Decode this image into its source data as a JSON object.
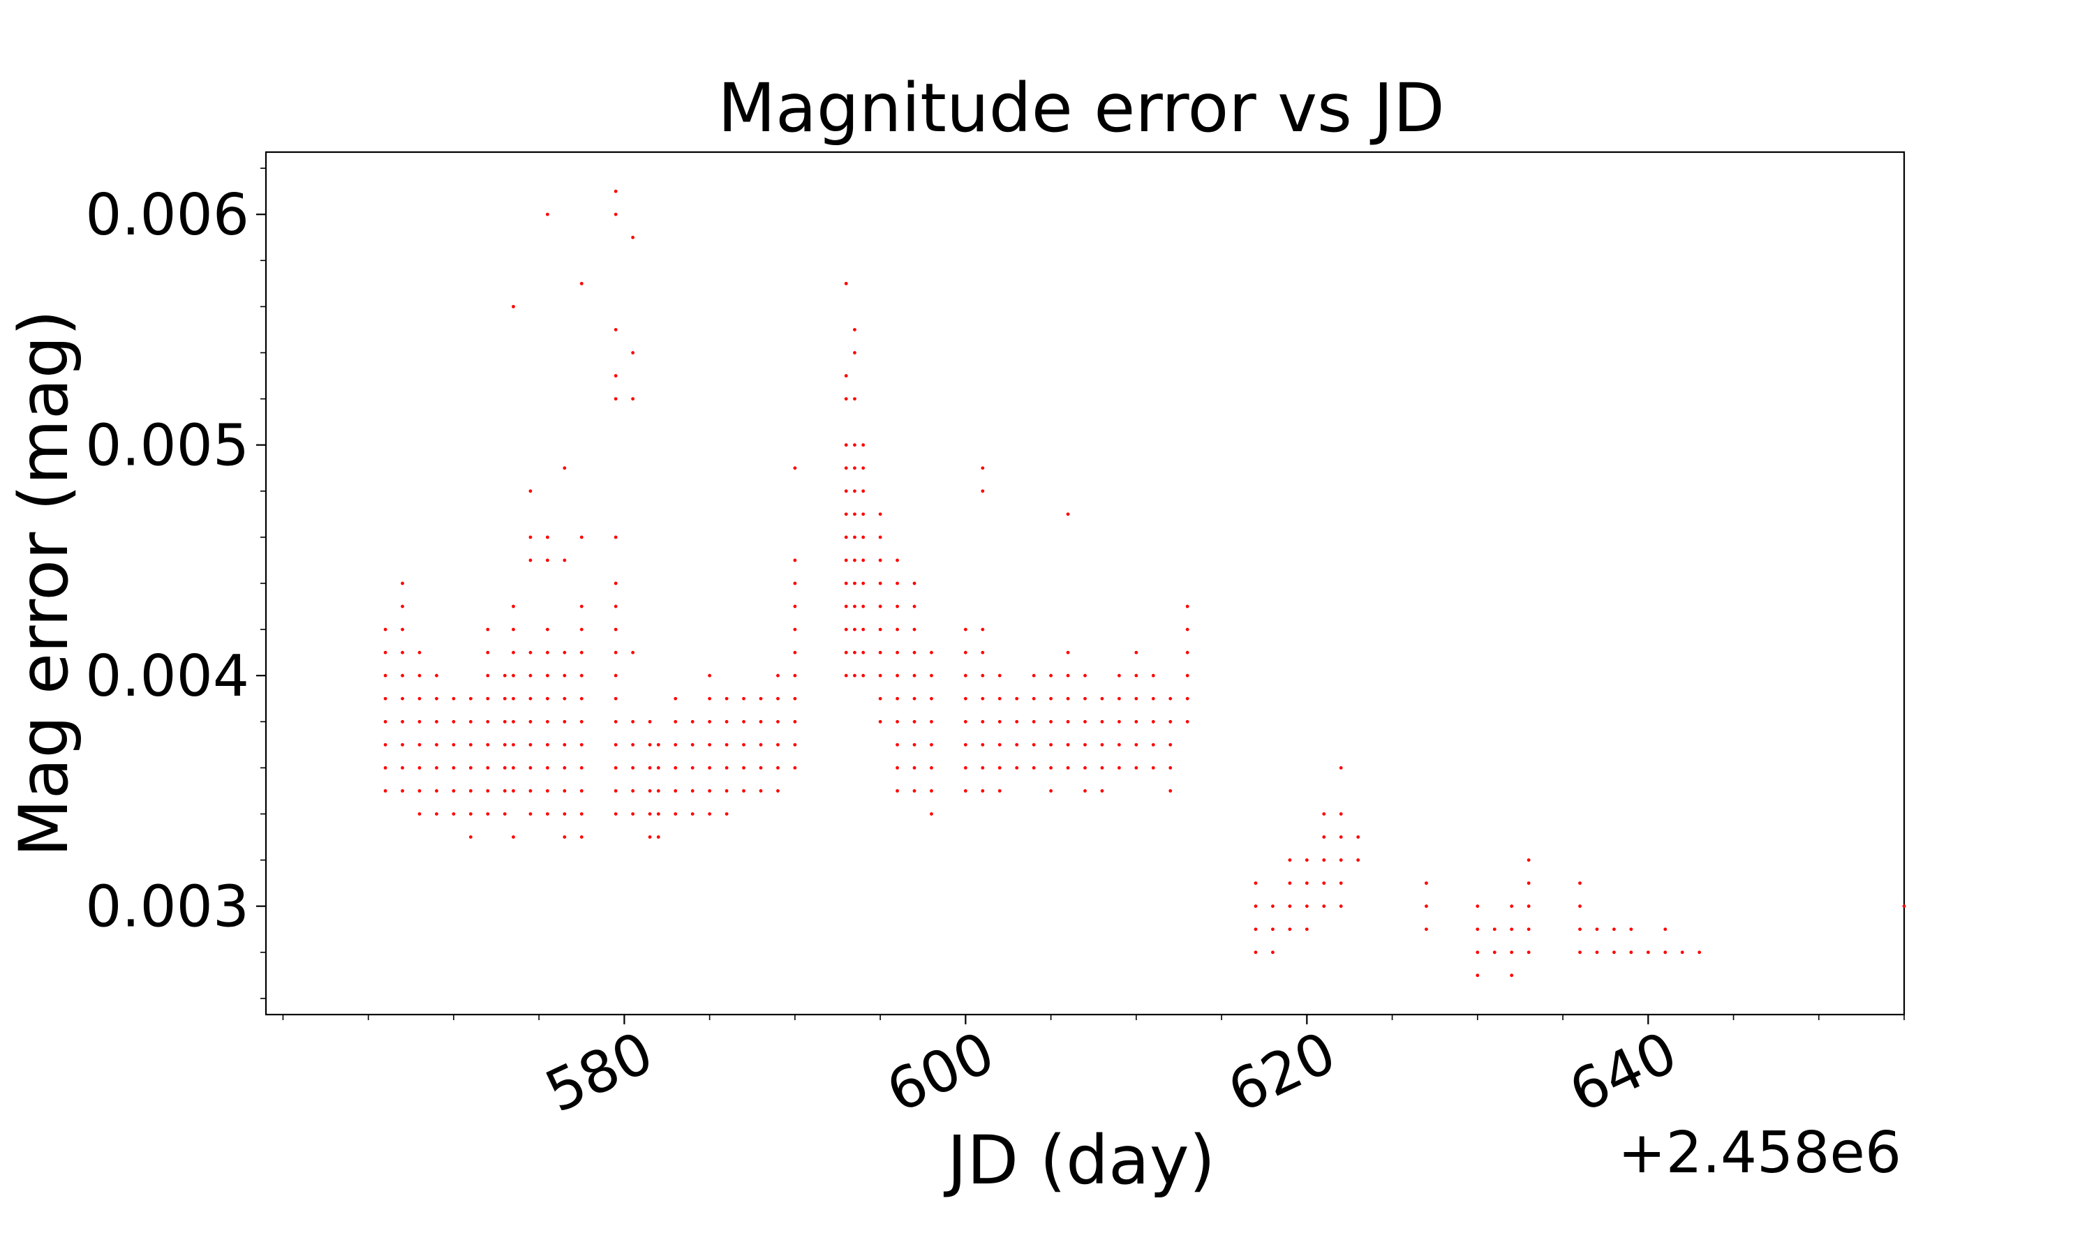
{
  "chart_data": {
    "type": "scatter",
    "title": "Magnitude error vs JD",
    "xlabel": "JD (day)",
    "ylabel": "Mag error (mag)",
    "x_offset_label": "+2.458e6",
    "x_offset": 2458000,
    "xlim": [
      2458559.0,
      2458655.0
    ],
    "ylim": [
      0.00253,
      0.00627
    ],
    "x_ticks": [
      {
        "value": 2458580,
        "label": "580"
      },
      {
        "value": 2458600,
        "label": "600"
      },
      {
        "value": 2458620,
        "label": "620"
      },
      {
        "value": 2458640,
        "label": "640"
      }
    ],
    "y_ticks": [
      {
        "value": 0.003,
        "label": "0.003"
      },
      {
        "value": 0.004,
        "label": "0.004"
      },
      {
        "value": 0.005,
        "label": "0.005"
      },
      {
        "value": 0.006,
        "label": "0.006"
      }
    ],
    "marker_color": "#ff0000",
    "grid": false,
    "legend": "none",
    "series": [
      {
        "name": "",
        "columns": [
          [
            2458566.0,
            [
              0.0035,
              0.0036,
              0.0037,
              0.0038,
              0.0039,
              0.004,
              0.0041,
              0.0042
            ]
          ],
          [
            2458567.0,
            [
              0.0035,
              0.0036,
              0.0037,
              0.0038,
              0.0039,
              0.004,
              0.0041,
              0.0042,
              0.0043,
              0.0044
            ]
          ],
          [
            2458568.0,
            [
              0.0034,
              0.0035,
              0.0036,
              0.0037,
              0.0038,
              0.0039,
              0.004,
              0.0041
            ]
          ],
          [
            2458569.0,
            [
              0.0034,
              0.0035,
              0.0036,
              0.0037,
              0.0038,
              0.0039,
              0.004
            ]
          ],
          [
            2458570.0,
            [
              0.0034,
              0.0035,
              0.0036,
              0.0037,
              0.0038,
              0.0039
            ]
          ],
          [
            2458571.0,
            [
              0.0033,
              0.0034,
              0.0035,
              0.0036,
              0.0037,
              0.0038,
              0.0039
            ]
          ],
          [
            2458572.0,
            [
              0.0034,
              0.0035,
              0.0036,
              0.0037,
              0.0038,
              0.0039,
              0.004,
              0.0041,
              0.0042
            ]
          ],
          [
            2458573.0,
            [
              0.0034,
              0.0035,
              0.0036,
              0.0037,
              0.0038,
              0.0039,
              0.004
            ]
          ],
          [
            2458573.5,
            [
              0.0033,
              0.0035,
              0.0036,
              0.0037,
              0.0038,
              0.0039,
              0.004,
              0.0041,
              0.0042,
              0.0043,
              0.0056
            ]
          ],
          [
            2458574.5,
            [
              0.0034,
              0.0035,
              0.0036,
              0.0037,
              0.0038,
              0.0039,
              0.004,
              0.0041,
              0.0045,
              0.0046,
              0.0048
            ]
          ],
          [
            2458575.5,
            [
              0.0034,
              0.0035,
              0.0036,
              0.0037,
              0.0038,
              0.0039,
              0.004,
              0.0041,
              0.0042,
              0.0045,
              0.0046,
              0.006
            ]
          ],
          [
            2458576.5,
            [
              0.0033,
              0.0034,
              0.0035,
              0.0036,
              0.0037,
              0.0038,
              0.0039,
              0.004,
              0.0041,
              0.0045,
              0.0049
            ]
          ],
          [
            2458577.5,
            [
              0.0033,
              0.0034,
              0.0035,
              0.0036,
              0.0037,
              0.0038,
              0.0039,
              0.004,
              0.0041,
              0.0042,
              0.0043,
              0.0046,
              0.0057
            ]
          ],
          [
            2458579.5,
            [
              0.0034,
              0.0035,
              0.0036,
              0.0037,
              0.0038,
              0.0039,
              0.004,
              0.0041,
              0.0042,
              0.0043,
              0.0044,
              0.0046,
              0.0052,
              0.0053,
              0.0055,
              0.006,
              0.0061
            ]
          ],
          [
            2458580.5,
            [
              0.0034,
              0.0035,
              0.0036,
              0.0037,
              0.0038,
              0.0041,
              0.0052,
              0.0054,
              0.0059
            ]
          ],
          [
            2458581.5,
            [
              0.0033,
              0.0034,
              0.0035,
              0.0036,
              0.0037,
              0.0038
            ]
          ],
          [
            2458582.0,
            [
              0.0033,
              0.0034,
              0.0035,
              0.0036,
              0.0037
            ]
          ],
          [
            2458583.0,
            [
              0.0034,
              0.0035,
              0.0036,
              0.0037,
              0.0038,
              0.0039
            ]
          ],
          [
            2458584.0,
            [
              0.0034,
              0.0035,
              0.0036,
              0.0037,
              0.0038
            ]
          ],
          [
            2458585.0,
            [
              0.0034,
              0.0035,
              0.0036,
              0.0037,
              0.0038,
              0.0039,
              0.004
            ]
          ],
          [
            2458586.0,
            [
              0.0034,
              0.0035,
              0.0036,
              0.0037,
              0.0038,
              0.0039
            ]
          ],
          [
            2458587.0,
            [
              0.0035,
              0.0036,
              0.0037,
              0.0038,
              0.0039
            ]
          ],
          [
            2458588.0,
            [
              0.0035,
              0.0036,
              0.0037,
              0.0038,
              0.0039
            ]
          ],
          [
            2458589.0,
            [
              0.0035,
              0.0036,
              0.0037,
              0.0038,
              0.0039,
              0.004
            ]
          ],
          [
            2458590.0,
            [
              0.0036,
              0.0037,
              0.0038,
              0.0039,
              0.004,
              0.0041,
              0.0042,
              0.0043,
              0.0044,
              0.0045,
              0.0049
            ]
          ],
          [
            2458593.0,
            [
              0.004,
              0.0041,
              0.0042,
              0.0043,
              0.0044,
              0.0045,
              0.0046,
              0.0047,
              0.0048,
              0.0049,
              0.005,
              0.0052,
              0.0053,
              0.0057
            ]
          ],
          [
            2458593.5,
            [
              0.004,
              0.0041,
              0.0042,
              0.0043,
              0.0044,
              0.0045,
              0.0046,
              0.0047,
              0.0048,
              0.0049,
              0.005,
              0.0052,
              0.0054,
              0.0055
            ]
          ],
          [
            2458594.0,
            [
              0.004,
              0.0041,
              0.0042,
              0.0043,
              0.0044,
              0.0045,
              0.0046,
              0.0047,
              0.0048,
              0.0049,
              0.005
            ]
          ],
          [
            2458595.0,
            [
              0.0038,
              0.0039,
              0.004,
              0.0041,
              0.0042,
              0.0043,
              0.0044,
              0.0045,
              0.0046,
              0.0047
            ]
          ],
          [
            2458596.0,
            [
              0.0035,
              0.0036,
              0.0037,
              0.0038,
              0.0039,
              0.004,
              0.0041,
              0.0042,
              0.0043,
              0.0044,
              0.0045
            ]
          ],
          [
            2458597.0,
            [
              0.0035,
              0.0036,
              0.0037,
              0.0038,
              0.0039,
              0.004,
              0.0041,
              0.0042,
              0.0043,
              0.0044
            ]
          ],
          [
            2458598.0,
            [
              0.0034,
              0.0035,
              0.0036,
              0.0037,
              0.0038,
              0.0039,
              0.004,
              0.0041
            ]
          ],
          [
            2458600.0,
            [
              0.0035,
              0.0036,
              0.0037,
              0.0038,
              0.0039,
              0.004,
              0.0041,
              0.0042
            ]
          ],
          [
            2458601.0,
            [
              0.0035,
              0.0036,
              0.0037,
              0.0038,
              0.0039,
              0.004,
              0.0041,
              0.0042,
              0.0048,
              0.0049
            ]
          ],
          [
            2458602.0,
            [
              0.0035,
              0.0036,
              0.0037,
              0.0038,
              0.0039,
              0.004
            ]
          ],
          [
            2458603.0,
            [
              0.0036,
              0.0037,
              0.0038,
              0.0039
            ]
          ],
          [
            2458604.0,
            [
              0.0036,
              0.0037,
              0.0038,
              0.0039,
              0.004
            ]
          ],
          [
            2458605.0,
            [
              0.0035,
              0.0036,
              0.0037,
              0.0038,
              0.0039,
              0.004
            ]
          ],
          [
            2458606.0,
            [
              0.0036,
              0.0037,
              0.0038,
              0.0039,
              0.004,
              0.0041,
              0.0047
            ]
          ],
          [
            2458607.0,
            [
              0.0035,
              0.0036,
              0.0037,
              0.0038,
              0.0039,
              0.004
            ]
          ],
          [
            2458608.0,
            [
              0.0035,
              0.0036,
              0.0037,
              0.0038,
              0.0039
            ]
          ],
          [
            2458609.0,
            [
              0.0036,
              0.0037,
              0.0038,
              0.0039,
              0.004
            ]
          ],
          [
            2458610.0,
            [
              0.0036,
              0.0037,
              0.0038,
              0.0039,
              0.004,
              0.0041
            ]
          ],
          [
            2458611.0,
            [
              0.0036,
              0.0037,
              0.0038,
              0.0039,
              0.004
            ]
          ],
          [
            2458612.0,
            [
              0.0035,
              0.0036,
              0.0037,
              0.0038,
              0.0039
            ]
          ],
          [
            2458613.0,
            [
              0.0038,
              0.0039,
              0.004,
              0.0041,
              0.0042,
              0.0043
            ]
          ],
          [
            2458617.0,
            [
              0.0028,
              0.0029,
              0.003,
              0.0031
            ]
          ],
          [
            2458618.0,
            [
              0.0028,
              0.0029,
              0.003
            ]
          ],
          [
            2458619.0,
            [
              0.0029,
              0.003,
              0.0031,
              0.0032
            ]
          ],
          [
            2458620.0,
            [
              0.0029,
              0.003,
              0.0031,
              0.0032
            ]
          ],
          [
            2458621.0,
            [
              0.003,
              0.0031,
              0.0032,
              0.0033,
              0.0034
            ]
          ],
          [
            2458622.0,
            [
              0.003,
              0.0031,
              0.0032,
              0.0033,
              0.0034,
              0.0036
            ]
          ],
          [
            2458623.0,
            [
              0.0032,
              0.0033
            ]
          ],
          [
            2458627.0,
            [
              0.0029,
              0.003,
              0.0031
            ]
          ],
          [
            2458630.0,
            [
              0.0027,
              0.0028,
              0.0029,
              0.003
            ]
          ],
          [
            2458631.0,
            [
              0.0028,
              0.0029
            ]
          ],
          [
            2458632.0,
            [
              0.0027,
              0.0028,
              0.0029,
              0.003
            ]
          ],
          [
            2458633.0,
            [
              0.0028,
              0.0029,
              0.003,
              0.0031,
              0.0032
            ]
          ],
          [
            2458636.0,
            [
              0.0028,
              0.0029,
              0.003,
              0.0031
            ]
          ],
          [
            2458637.0,
            [
              0.0028,
              0.0029
            ]
          ],
          [
            2458638.0,
            [
              0.0028,
              0.0029
            ]
          ],
          [
            2458639.0,
            [
              0.0028,
              0.0029
            ]
          ],
          [
            2458640.0,
            [
              0.0028
            ]
          ],
          [
            2458641.0,
            [
              0.0028,
              0.0029
            ]
          ],
          [
            2458642.0,
            [
              0.0028
            ]
          ],
          [
            2458643.0,
            [
              0.0028
            ]
          ],
          [
            2458655.0,
            [
              0.003
            ]
          ]
        ]
      }
    ]
  }
}
